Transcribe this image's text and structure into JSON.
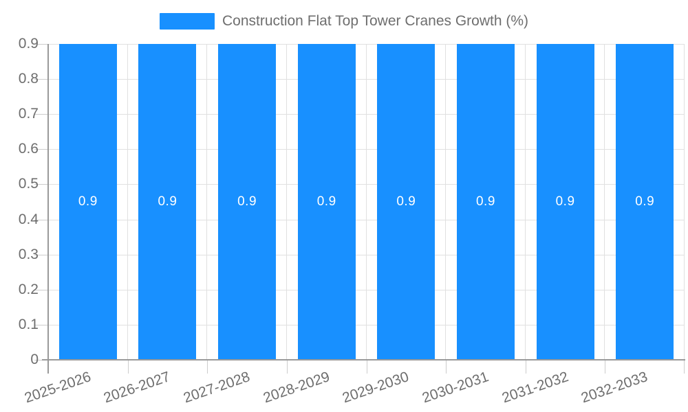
{
  "chart_data": {
    "type": "bar",
    "title": "Construction Flat Top Tower Cranes Growth (%)",
    "legend": {
      "label": "Construction Flat Top Tower Cranes Growth (%)",
      "position": "top-center",
      "swatch_color": "#1890ff"
    },
    "categories": [
      "2025-2026",
      "2026-2027",
      "2027-2028",
      "2028-2029",
      "2029-2030",
      "2030-2031",
      "2031-2032",
      "2032-2033"
    ],
    "series": [
      {
        "name": "Construction Flat Top Tower Cranes Growth (%)",
        "values": [
          0.9,
          0.9,
          0.9,
          0.9,
          0.9,
          0.9,
          0.9,
          0.9
        ],
        "bar_labels": [
          "0.9",
          "0.9",
          "0.9",
          "0.9",
          "0.9",
          "0.9",
          "0.9",
          "0.9"
        ]
      }
    ],
    "xlabel": "",
    "ylabel": "",
    "ylim": [
      0,
      0.9
    ],
    "yticks": [
      0,
      0.1,
      0.2,
      0.3,
      0.4,
      0.5,
      0.6,
      0.7,
      0.8,
      0.9
    ],
    "ytick_labels": [
      "0",
      "0.1",
      "0.2",
      "0.3",
      "0.4",
      "0.5",
      "0.6",
      "0.7",
      "0.8",
      "0.9"
    ],
    "grid": "horizontal-and-vertical",
    "x_label_rotation_deg": -19,
    "colors": {
      "bar": "#1890ff",
      "bar_label": "#ffffff",
      "axis_line": "#999999",
      "grid_line": "#e0e0e0",
      "tick_line": "#cccccc",
      "text": "#6e6e6e",
      "background": "#ffffff"
    }
  }
}
